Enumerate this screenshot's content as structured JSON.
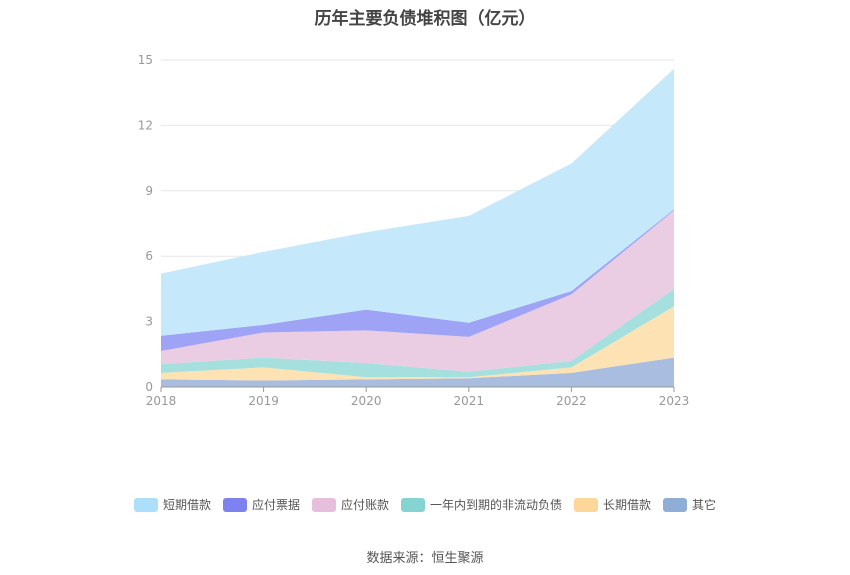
{
  "chart_data": {
    "type": "area",
    "stacked": true,
    "title": "历年主要负债堆积图（亿元）",
    "x": [
      "2018",
      "2019",
      "2020",
      "2021",
      "2022",
      "2023"
    ],
    "ylim": [
      0,
      15
    ],
    "yticks": [
      0,
      3,
      6,
      9,
      12,
      15
    ],
    "series": [
      {
        "name": "其它",
        "color": "#a9bde0",
        "legend_color": "#8eaed8",
        "values": [
          0.35,
          0.3,
          0.35,
          0.4,
          0.65,
          1.35
        ]
      },
      {
        "name": "长期借款",
        "color": "#fde3b3",
        "legend_color": "#fdd79a",
        "values": [
          0.3,
          0.6,
          0.1,
          0.05,
          0.25,
          2.35
        ]
      },
      {
        "name": "一年内到期的非流动负债",
        "color": "#a6e0de",
        "legend_color": "#86d4d1",
        "values": [
          0.4,
          0.45,
          0.65,
          0.25,
          0.3,
          0.8
        ]
      },
      {
        "name": "应付账款",
        "color": "#ebcde3",
        "legend_color": "#e6bfdc",
        "values": [
          0.6,
          1.15,
          1.5,
          1.6,
          3.05,
          3.6
        ]
      },
      {
        "name": "应付票据",
        "color": "#9fa3f5",
        "legend_color": "#7d82f0",
        "values": [
          0.7,
          0.35,
          0.95,
          0.65,
          0.15,
          0.05
        ]
      },
      {
        "name": "短期借款",
        "color": "#c5e9fb",
        "legend_color": "#abdffa",
        "values": [
          2.85,
          3.35,
          3.55,
          4.9,
          5.85,
          6.45
        ]
      }
    ],
    "legend_order": [
      "短期借款",
      "应付票据",
      "应付账款",
      "一年内到期的非流动负债",
      "长期借款",
      "其它"
    ]
  },
  "source_label": "数据来源：恒生聚源"
}
